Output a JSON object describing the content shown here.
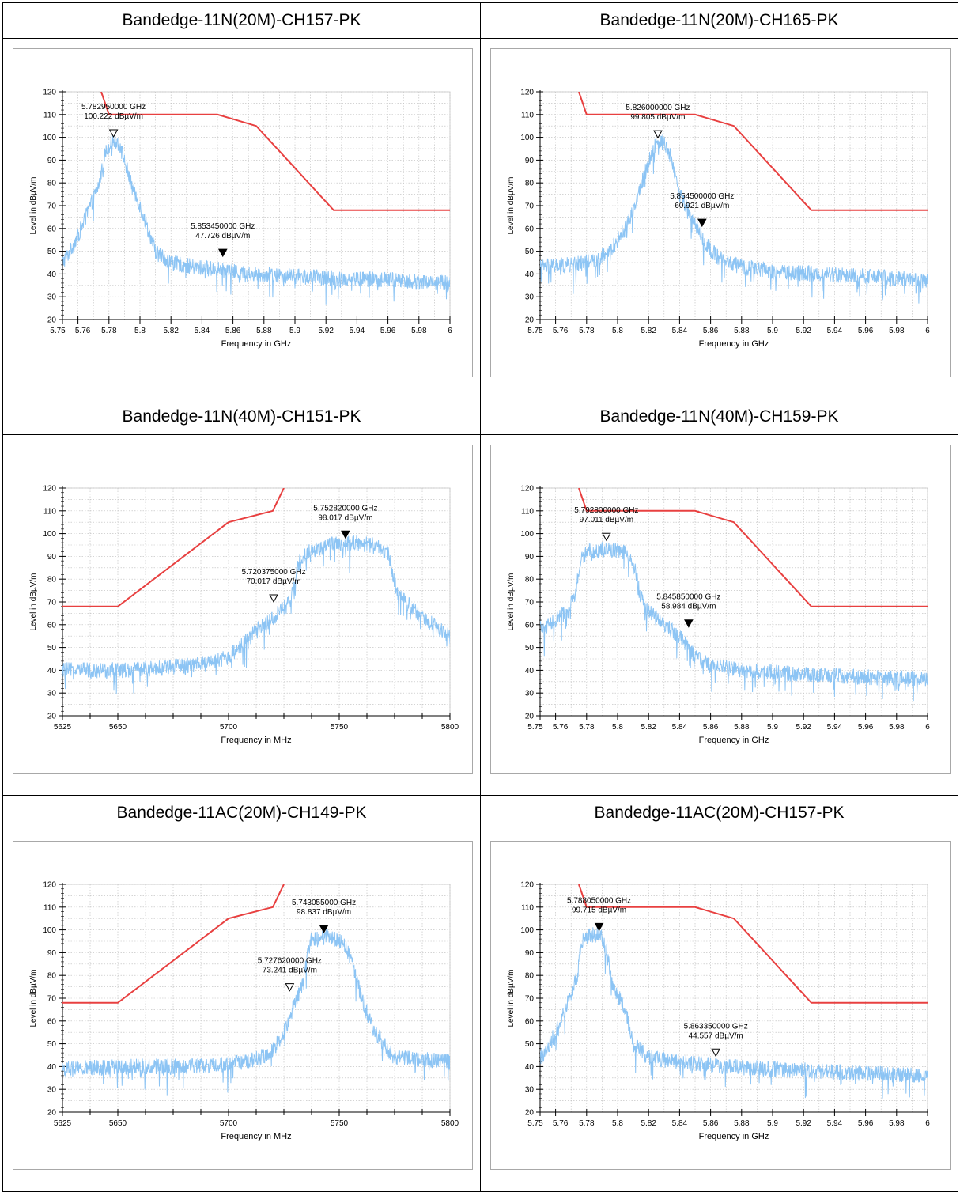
{
  "colors": {
    "trace": "#8cc4f4",
    "limit": "#e84040",
    "grid": "#bbbbbb",
    "axis": "#000000"
  },
  "tables": [
    {
      "title": "Bandedge-11N(20M)-CH157-PK"
    },
    {
      "title": "Bandedge-11N(20M)-CH165-PK"
    },
    {
      "title": "Bandedge-11N(40M)-CH151-PK"
    },
    {
      "title": "Bandedge-11N(40M)-CH159-PK"
    },
    {
      "title": "Bandedge-11AC(20M)-CH149-PK"
    },
    {
      "title": "Bandedge-11AC(20M)-CH157-PK"
    }
  ],
  "chart_data": [
    {
      "type": "line",
      "xlabel": "Frequency in GHz",
      "ylabel": "Level in dBµV/m",
      "xlim": [
        5.75,
        6.0
      ],
      "ylim": [
        20,
        120
      ],
      "xticks": [
        "5.75",
        "5.76",
        "5.78",
        "5.8",
        "5.82",
        "5.84",
        "5.86",
        "5.88",
        "5.9",
        "5.92",
        "5.94",
        "5.96",
        "5.98",
        "6"
      ],
      "yticks": [
        20,
        30,
        40,
        50,
        60,
        70,
        80,
        90,
        100,
        110,
        120
      ],
      "grid": true,
      "series": [
        {
          "x": [
            5.75,
            5.755,
            5.762,
            5.768,
            5.774,
            5.777,
            5.782,
            5.786,
            5.789,
            5.792,
            5.795,
            5.8,
            5.805,
            5.81,
            5.82,
            5.835,
            5.85,
            5.87,
            5.9,
            5.93,
            5.96,
            6.0
          ],
          "y": [
            45,
            50,
            60,
            70,
            80,
            92,
            99,
            98,
            92,
            85,
            78,
            70,
            60,
            50,
            45,
            43,
            42,
            40,
            39,
            38,
            37.5,
            36
          ]
        },
        {
          "x": [
            5.775,
            5.78,
            5.85,
            5.875,
            5.925,
            6.0
          ],
          "y": [
            120,
            110,
            110,
            105,
            68,
            68
          ]
        }
      ],
      "markers": [
        {
          "x": 5.78295,
          "y": 100.222,
          "filled": false,
          "label": "5.782950000 GHz",
          "label2": "100.222 dBµV/m"
        },
        {
          "x": 5.85345,
          "y": 47.726,
          "filled": true,
          "label": "5.853450000 GHz",
          "label2": "47.726 dBµV/m"
        }
      ]
    },
    {
      "type": "line",
      "xlabel": "Frequency in GHz",
      "ylabel": "Level in dBµV/m",
      "xlim": [
        5.75,
        6.0
      ],
      "ylim": [
        20,
        120
      ],
      "xticks": [
        "5.75",
        "5.76",
        "5.78",
        "5.8",
        "5.82",
        "5.84",
        "5.86",
        "5.88",
        "5.9",
        "5.92",
        "5.94",
        "5.96",
        "5.98",
        "6"
      ],
      "yticks": [
        20,
        30,
        40,
        50,
        60,
        70,
        80,
        90,
        100,
        110,
        120
      ],
      "grid": true,
      "series": [
        {
          "x": [
            5.75,
            5.77,
            5.785,
            5.795,
            5.805,
            5.812,
            5.818,
            5.824,
            5.83,
            5.835,
            5.84,
            5.848,
            5.855,
            5.865,
            5.88,
            5.9,
            5.93,
            5.96,
            6.0
          ],
          "y": [
            43,
            44,
            46,
            50,
            60,
            72,
            85,
            97,
            98,
            90,
            75,
            65,
            55,
            47,
            43,
            41,
            40,
            39,
            37
          ]
        },
        {
          "x": [
            5.775,
            5.78,
            5.85,
            5.875,
            5.925,
            6.0
          ],
          "y": [
            120,
            110,
            110,
            105,
            68,
            68
          ]
        }
      ],
      "markers": [
        {
          "x": 5.826,
          "y": 99.805,
          "filled": false,
          "label": "5.826000000 GHz",
          "label2": "99.805 dBµV/m"
        },
        {
          "x": 5.8545,
          "y": 60.921,
          "filled": true,
          "label": "5.854500000 GHz",
          "label2": "60.921 dBµV/m"
        }
      ]
    },
    {
      "type": "line",
      "xlabel": "Frequency in MHz",
      "ylabel": "Level in dBµV/m",
      "xlim": [
        5625,
        5800
      ],
      "ylim": [
        20,
        120
      ],
      "xticks": [
        "5625",
        "5650",
        "5700",
        "5750",
        "5800"
      ],
      "yticks": [
        20,
        30,
        40,
        50,
        60,
        70,
        80,
        90,
        100,
        110,
        120
      ],
      "grid": true,
      "series": [
        {
          "x": [
            5625,
            5650,
            5670,
            5690,
            5700,
            5710,
            5720,
            5728,
            5732,
            5736,
            5745,
            5755,
            5765,
            5772,
            5776,
            5785,
            5800
          ],
          "y": [
            40,
            40,
            41,
            43,
            46,
            55,
            63,
            70,
            88,
            92,
            95,
            96,
            95,
            92,
            75,
            65,
            55
          ]
        },
        {
          "x": [
            5625,
            5650,
            5700,
            5720,
            5725
          ],
          "y": [
            68,
            68,
            105,
            110,
            120
          ]
        }
      ],
      "markers": [
        {
          "x": 5752.82,
          "y": 98.017,
          "filled": true,
          "label": "5.752820000 GHz",
          "label2": "98.017 dBµV/m"
        },
        {
          "x": 5720.375,
          "y": 70.017,
          "filled": false,
          "label": "5.720375000 GHz",
          "label2": "70.017 dBµV/m"
        }
      ]
    },
    {
      "type": "line",
      "xlabel": "Frequency in GHz",
      "ylabel": "Level in dBµV/m",
      "xlim": [
        5.75,
        6.0
      ],
      "ylim": [
        20,
        120
      ],
      "xticks": [
        "5.75",
        "5.76",
        "5.78",
        "5.8",
        "5.82",
        "5.84",
        "5.86",
        "5.88",
        "5.9",
        "5.92",
        "5.94",
        "5.96",
        "5.98",
        "6"
      ],
      "yticks": [
        20,
        30,
        40,
        50,
        60,
        70,
        80,
        90,
        100,
        110,
        120
      ],
      "grid": true,
      "series": [
        {
          "x": [
            5.75,
            5.76,
            5.768,
            5.772,
            5.776,
            5.78,
            5.792,
            5.805,
            5.81,
            5.815,
            5.82,
            5.83,
            5.84,
            5.85,
            5.86,
            5.88,
            5.9,
            5.93,
            5.96,
            6.0
          ],
          "y": [
            58,
            62,
            66,
            72,
            88,
            92,
            93,
            92,
            88,
            72,
            66,
            60,
            55,
            46,
            42,
            40,
            39,
            38,
            37,
            36
          ]
        },
        {
          "x": [
            5.775,
            5.78,
            5.85,
            5.875,
            5.925,
            6.0
          ],
          "y": [
            120,
            110,
            110,
            105,
            68,
            68
          ]
        }
      ],
      "markers": [
        {
          "x": 5.7928,
          "y": 97.011,
          "filled": false,
          "label": "5.792800000 GHz",
          "label2": "97.011 dBµV/m"
        },
        {
          "x": 5.84585,
          "y": 58.984,
          "filled": true,
          "label": "5.845850000 GHz",
          "label2": "58.984 dBµV/m"
        }
      ]
    },
    {
      "type": "line",
      "xlabel": "Frequency in MHz",
      "ylabel": "Level in dBµV/m",
      "xlim": [
        5625,
        5800
      ],
      "ylim": [
        20,
        120
      ],
      "xticks": [
        "5625",
        "5650",
        "5700",
        "5750",
        "5800"
      ],
      "yticks": [
        20,
        30,
        40,
        50,
        60,
        70,
        80,
        90,
        100,
        110,
        120
      ],
      "grid": true,
      "series": [
        {
          "x": [
            5625,
            5650,
            5680,
            5700,
            5712,
            5720,
            5725,
            5730,
            5733,
            5737,
            5745,
            5752,
            5756,
            5760,
            5766,
            5775,
            5800
          ],
          "y": [
            39,
            40,
            40,
            41,
            43,
            47,
            55,
            68,
            75,
            95,
            97,
            95,
            85,
            70,
            55,
            44,
            42
          ]
        },
        {
          "x": [
            5625,
            5650,
            5700,
            5720,
            5725
          ],
          "y": [
            68,
            68,
            105,
            110,
            120
          ]
        }
      ],
      "markers": [
        {
          "x": 5743.055,
          "y": 98.837,
          "filled": true,
          "label": "5.743055000 GHz",
          "label2": "98.837 dBµV/m"
        },
        {
          "x": 5727.62,
          "y": 73.241,
          "filled": false,
          "label": "5.727620000 GHz",
          "label2": "73.241 dBµV/m"
        }
      ]
    },
    {
      "type": "line",
      "xlabel": "Frequency in GHz",
      "ylabel": "Level in dBµV/m",
      "xlim": [
        5.75,
        6.0
      ],
      "ylim": [
        20,
        120
      ],
      "xticks": [
        "5.75",
        "5.76",
        "5.78",
        "5.8",
        "5.82",
        "5.84",
        "5.86",
        "5.88",
        "5.9",
        "5.92",
        "5.94",
        "5.96",
        "5.98",
        "6"
      ],
      "yticks": [
        20,
        30,
        40,
        50,
        60,
        70,
        80,
        90,
        100,
        110,
        120
      ],
      "grid": true,
      "series": [
        {
          "x": [
            5.75,
            5.755,
            5.762,
            5.768,
            5.774,
            5.777,
            5.783,
            5.79,
            5.793,
            5.797,
            5.805,
            5.81,
            5.82,
            5.84,
            5.87,
            5.9,
            5.93,
            5.96,
            6.0
          ],
          "y": [
            44,
            48,
            58,
            68,
            80,
            95,
            98,
            97,
            90,
            75,
            65,
            50,
            44,
            42,
            40,
            39,
            38,
            37,
            36
          ]
        },
        {
          "x": [
            5.775,
            5.78,
            5.85,
            5.875,
            5.925,
            6.0
          ],
          "y": [
            120,
            110,
            110,
            105,
            68,
            68
          ]
        }
      ],
      "markers": [
        {
          "x": 5.78805,
          "y": 99.715,
          "filled": true,
          "label": "5.788050000 GHz",
          "label2": "99.715 dBµV/m"
        },
        {
          "x": 5.86335,
          "y": 44.557,
          "filled": false,
          "label": "5.863350000 GHz",
          "label2": "44.557 dBµV/m"
        }
      ]
    }
  ]
}
